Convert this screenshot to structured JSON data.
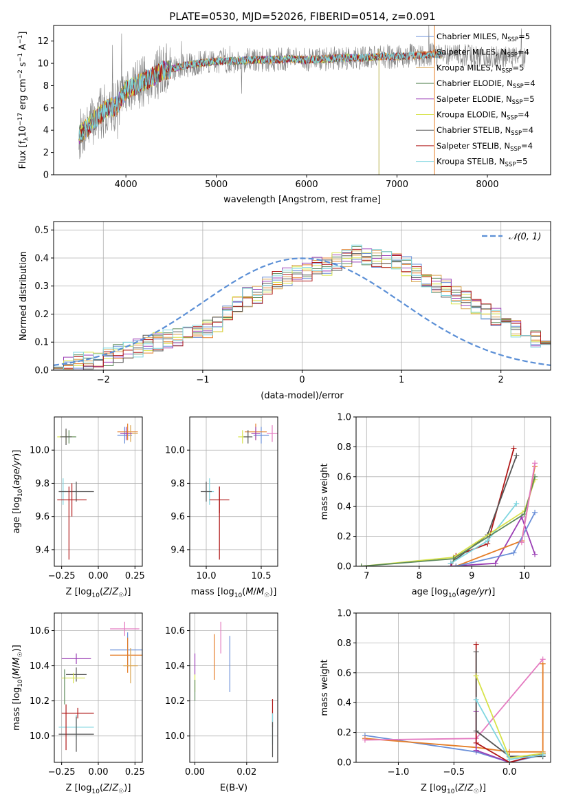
{
  "figure": {
    "title": "PLATE=0530, MJD=52026, FIBERID=0514, z=0.091"
  },
  "colors": {
    "Chabrier MILES": "#6a8fd8",
    "Salpeter MILES": "#e57d26",
    "Kroupa MILES": "#d9a552",
    "Chabrier ELODIE": "#5d8a5a",
    "Salpeter ELODIE": "#9b3fb5",
    "Kroupa ELODIE": "#d7e34a",
    "Chabrier STELIB": "#555555",
    "Salpeter STELIB": "#b01818",
    "Kroupa STELIB": "#7fd6e0",
    "pink": "#e47bc1",
    "observed": "#808080",
    "gaussian": "#5b8fd6"
  },
  "chart_data": [
    {
      "id": "spectrum",
      "type": "line",
      "title": "PLATE=0530, MJD=52026, FIBERID=0514, z=0.091",
      "xlabel": "wavelength [Angstrom, rest frame]",
      "ylabel": "Flux [f_λ10^-17 erg cm^-2 s^-1 A^-1]",
      "xlim": [
        3200,
        8700
      ],
      "ylim": [
        0,
        13.4
      ],
      "xticks": [
        4000,
        5000,
        6000,
        7000,
        8000
      ],
      "yticks": [
        0,
        2,
        4,
        6,
        8,
        10,
        12
      ],
      "legend_position": "top-right",
      "legend": [
        {
          "label": "Chabrier MILES, N",
          "sub": "SSP",
          "tail": "=5",
          "color": "#6a8fd8"
        },
        {
          "label": "Salpeter MILES, N",
          "sub": "SSP",
          "tail": "=4",
          "color": "#e57d26"
        },
        {
          "label": "Kroupa MILES, N",
          "sub": "SSP",
          "tail": "=5",
          "color": "#d9a552"
        },
        {
          "label": "Chabrier ELODIE, N",
          "sub": "SSP",
          "tail": "=4",
          "color": "#5d8a5a"
        },
        {
          "label": "Salpeter ELODIE, N",
          "sub": "SSP",
          "tail": "=5",
          "color": "#9b3fb5"
        },
        {
          "label": "Kroupa ELODIE, N",
          "sub": "SSP",
          "tail": "=4",
          "color": "#d7e34a"
        },
        {
          "label": "Chabrier STELIB, N",
          "sub": "SSP",
          "tail": "=4",
          "color": "#555555"
        },
        {
          "label": "Salpeter STELIB, N",
          "sub": "SSP",
          "tail": "=4",
          "color": "#b01818"
        },
        {
          "label": "Kroupa STELIB, N",
          "sub": "SSP",
          "tail": "=5",
          "color": "#7fd6e0"
        }
      ],
      "continuum": [
        [
          3480,
          3.5
        ],
        [
          3600,
          4.5
        ],
        [
          3700,
          5.3
        ],
        [
          3800,
          6.0
        ],
        [
          3900,
          6.2
        ],
        [
          4000,
          7.6
        ],
        [
          4100,
          8.0
        ],
        [
          4200,
          8.4
        ],
        [
          4300,
          8.8
        ],
        [
          4400,
          9.3
        ],
        [
          4500,
          9.5
        ],
        [
          4600,
          9.7
        ],
        [
          4800,
          10.0
        ],
        [
          5000,
          10.2
        ],
        [
          5200,
          10.2
        ],
        [
          5400,
          10.3
        ],
        [
          5600,
          10.3
        ],
        [
          5800,
          10.4
        ],
        [
          6000,
          10.3
        ],
        [
          6200,
          10.4
        ],
        [
          6400,
          10.5
        ],
        [
          6600,
          10.5
        ],
        [
          6800,
          10.6
        ],
        [
          7000,
          10.6
        ],
        [
          7200,
          10.7
        ],
        [
          7400,
          10.8
        ],
        [
          7600,
          10.8
        ],
        [
          7800,
          10.7
        ],
        [
          8000,
          10.6
        ],
        [
          8200,
          10.6
        ],
        [
          8400,
          10.5
        ]
      ],
      "model_range": [
        3480,
        7500
      ],
      "observed_range": [
        3480,
        8420
      ]
    },
    {
      "id": "residuals",
      "type": "histogram",
      "xlabel": "(data-model)/error",
      "ylabel": "Normed distribution",
      "xlim": [
        -2.5,
        2.5
      ],
      "ylim": [
        0,
        0.53
      ],
      "xticks": [
        -2,
        -1,
        0,
        1,
        2
      ],
      "yticks": [
        0.0,
        0.1,
        0.2,
        0.3,
        0.4,
        0.5
      ],
      "legend": {
        "label": "𝒩(0, 1)",
        "position": "top-right"
      },
      "bin_width": 0.1,
      "bin_start": -2.5,
      "base_values": [
        0.01,
        0.02,
        0.03,
        0.035,
        0.03,
        0.05,
        0.06,
        0.07,
        0.08,
        0.09,
        0.1,
        0.11,
        0.12,
        0.13,
        0.14,
        0.15,
        0.17,
        0.2,
        0.23,
        0.26,
        0.27,
        0.3,
        0.32,
        0.33,
        0.34,
        0.35,
        0.37,
        0.37,
        0.39,
        0.4,
        0.42,
        0.41,
        0.4,
        0.39,
        0.38,
        0.37,
        0.35,
        0.33,
        0.31,
        0.29,
        0.27,
        0.25,
        0.23,
        0.21,
        0.19,
        0.17,
        0.15,
        0.13,
        0.11,
        0.1
      ]
    },
    {
      "id": "age_vs_Z",
      "type": "scatter-errorbar",
      "xlabel": "Z [log10(Z/Z☉)]",
      "ylabel": "age [log10(age/yr)]",
      "xlim": [
        -0.3,
        0.3
      ],
      "ylim": [
        9.3,
        10.2
      ],
      "xticks": [
        -0.25,
        0.0,
        0.25
      ],
      "xticklabels": [
        "−0.25",
        "0.00",
        "0.25"
      ],
      "yticks": [
        9.4,
        9.6,
        9.8,
        10.0
      ],
      "points": [
        {
          "series": "Chabrier MILES",
          "x": 0.18,
          "y": 10.09,
          "xerr": 0.05,
          "yerr": 0.05
        },
        {
          "series": "Salpeter MILES",
          "x": 0.2,
          "y": 10.11,
          "xerr": 0.07,
          "yerr": 0.05
        },
        {
          "series": "Kroupa MILES",
          "x": 0.22,
          "y": 10.1,
          "xerr": 0.05,
          "yerr": 0.05
        },
        {
          "series": "Salpeter ELODIE",
          "x": 0.19,
          "y": 10.1,
          "xerr": 0.04,
          "yerr": 0.04
        },
        {
          "series": "Kroupa ELODIE",
          "x": -0.22,
          "y": 10.08,
          "xerr": 0.06,
          "yerr": 0.04
        },
        {
          "series": "Chabrier ELODIE",
          "x": -0.2,
          "y": 10.08,
          "xerr": 0.05,
          "yerr": 0.04
        },
        {
          "series": "Chabrier STELIB",
          "x": -0.22,
          "y": 10.08,
          "xerr": 0.04,
          "yerr": 0.05
        },
        {
          "series": "Kroupa STELIB",
          "x": -0.24,
          "y": 9.75,
          "xerr": 0.02,
          "yerr": 0.08
        },
        {
          "series": "Chabrier STELIB",
          "x": -0.15,
          "y": 9.75,
          "xerr": 0.12,
          "yerr": 0.06
        },
        {
          "series": "Salpeter STELIB",
          "x": -0.18,
          "y": 9.7,
          "xerr": 0.1,
          "yerr": 0.1
        },
        {
          "series": "Salpeter STELIB",
          "x": -0.2,
          "y": 9.56,
          "xerr": 0.0,
          "yerr": 0.22
        }
      ]
    },
    {
      "id": "age_vs_mass",
      "type": "scatter-errorbar",
      "xlabel": "mass [log10(M/M☉)]",
      "xlim": [
        9.85,
        10.65
      ],
      "ylim": [
        9.3,
        10.2
      ],
      "xticks": [
        10.0,
        10.5
      ],
      "yticks": [
        9.4,
        9.6,
        9.8,
        10.0
      ],
      "points": [
        {
          "series": "Chabrier MILES",
          "x": 10.5,
          "y": 10.09,
          "xerr": 0.07,
          "yerr": 0.05
        },
        {
          "series": "Salpeter MILES",
          "x": 10.45,
          "y": 10.11,
          "xerr": 0.1,
          "yerr": 0.05
        },
        {
          "series": "pink",
          "x": 10.6,
          "y": 10.1,
          "xerr": 0.05,
          "yerr": 0.05
        },
        {
          "series": "Salpeter ELODIE",
          "x": 10.45,
          "y": 10.1,
          "xerr": 0.04,
          "yerr": 0.04
        },
        {
          "series": "Kroupa ELODIE",
          "x": 10.33,
          "y": 10.08,
          "xerr": 0.04,
          "yerr": 0.04
        },
        {
          "series": "Chabrier STELIB",
          "x": 10.38,
          "y": 10.08,
          "xerr": 0.04,
          "yerr": 0.04
        },
        {
          "series": "Kroupa STELIB",
          "x": 10.03,
          "y": 9.75,
          "xerr": 0.04,
          "yerr": 0.08
        },
        {
          "series": "Chabrier STELIB",
          "x": 10.0,
          "y": 9.75,
          "xerr": 0.05,
          "yerr": 0.06
        },
        {
          "series": "Salpeter STELIB",
          "x": 10.12,
          "y": 9.7,
          "xerr": 0.09,
          "yerr": 0.08
        },
        {
          "series": "Salpeter STELIB",
          "x": 10.12,
          "y": 9.56,
          "xerr": 0.0,
          "yerr": 0.22
        }
      ]
    },
    {
      "id": "weight_vs_age",
      "type": "line",
      "xlabel": "age  [log10(age/yr)]",
      "ylabel": "mass weight",
      "xlim": [
        6.8,
        10.5
      ],
      "ylim": [
        0,
        1.0
      ],
      "xticks": [
        7,
        8,
        9,
        10
      ],
      "yticks": [
        0.0,
        0.2,
        0.4,
        0.6,
        0.8,
        1.0
      ],
      "series": [
        {
          "name": "Salpeter STELIB",
          "x": [
            8.6,
            8.7,
            9.3,
            9.8
          ],
          "y": [
            0.0,
            0.07,
            0.15,
            0.79
          ]
        },
        {
          "name": "Chabrier STELIB",
          "x": [
            8.6,
            9.3,
            9.85
          ],
          "y": [
            0.02,
            0.21,
            0.74
          ]
        },
        {
          "name": "Kroupa STELIB",
          "x": [
            8.6,
            9.3,
            9.85
          ],
          "y": [
            0.02,
            0.17,
            0.42
          ]
        },
        {
          "name": "Salpeter ELODIE",
          "x": [
            8.6,
            9.45,
            9.95,
            10.2
          ],
          "y": [
            0.0,
            0.02,
            0.33,
            0.08
          ]
        },
        {
          "name": "Kroupa ELODIE",
          "x": [
            6.9,
            8.65,
            10.0,
            10.2
          ],
          "y": [
            0.0,
            0.06,
            0.37,
            0.58
          ]
        },
        {
          "name": "Chabrier ELODIE",
          "x": [
            6.9,
            8.65,
            10.0,
            10.2
          ],
          "y": [
            0.0,
            0.05,
            0.35,
            0.6
          ]
        },
        {
          "name": "Salpeter MILES",
          "x": [
            8.7,
            9.95,
            10.2
          ],
          "y": [
            0.0,
            0.17,
            0.67
          ]
        },
        {
          "name": "Chabrier MILES",
          "x": [
            8.7,
            9.8,
            10.2
          ],
          "y": [
            0.0,
            0.09,
            0.36
          ]
        },
        {
          "name": "pink",
          "x": [
            9.95,
            10.2
          ],
          "y": [
            0.16,
            0.69
          ]
        }
      ]
    },
    {
      "id": "mass_vs_Z",
      "type": "scatter-errorbar",
      "xlabel": "Z [log10(Z/Z☉)]",
      "ylabel": "mass [log10(M/M☉)]",
      "xlim": [
        -0.3,
        0.3
      ],
      "ylim": [
        9.85,
        10.7
      ],
      "xticks": [
        -0.25,
        0.0,
        0.25
      ],
      "xticklabels": [
        "−0.25",
        "0.00",
        "0.25"
      ],
      "yticks": [
        10.0,
        10.2,
        10.4,
        10.6
      ],
      "points": [
        {
          "series": "pink",
          "x": 0.18,
          "y": 10.61,
          "xerr": 0.1,
          "yerr": 0.04
        },
        {
          "series": "Chabrier MILES",
          "x": 0.2,
          "y": 10.49,
          "xerr": 0.12,
          "yerr": 0.1
        },
        {
          "series": "Salpeter MILES",
          "x": 0.2,
          "y": 10.46,
          "xerr": 0.12,
          "yerr": 0.1
        },
        {
          "series": "Kroupa MILES",
          "x": 0.22,
          "y": 10.4,
          "xerr": 0.05,
          "yerr": 0.1
        },
        {
          "series": "Salpeter ELODIE",
          "x": -0.15,
          "y": 10.44,
          "xerr": 0.1,
          "yerr": 0.03
        },
        {
          "series": "Chabrier STELIB",
          "x": -0.15,
          "y": 10.35,
          "xerr": 0.07,
          "yerr": 0.04
        },
        {
          "series": "Kroupa ELODIE",
          "x": -0.17,
          "y": 10.33,
          "xerr": 0.08,
          "yerr": 0.03
        },
        {
          "series": "Chabrier ELODIE",
          "x": -0.23,
          "y": 10.28,
          "xerr": 0.0,
          "yerr": 0.1
        },
        {
          "series": "Salpeter STELIB",
          "x": -0.14,
          "y": 10.13,
          "xerr": 0.11,
          "yerr": 0.03
        },
        {
          "series": "Kroupa STELIB",
          "x": -0.15,
          "y": 10.05,
          "xerr": 0.12,
          "yerr": 0.07
        },
        {
          "series": "Chabrier STELIB",
          "x": -0.15,
          "y": 10.01,
          "xerr": 0.12,
          "yerr": 0.1
        },
        {
          "series": "Salpeter STELIB",
          "x": -0.22,
          "y": 10.05,
          "xerr": 0.0,
          "yerr": 0.13
        }
      ]
    },
    {
      "id": "mass_vs_EBV",
      "type": "errorbar",
      "xlabel": "E(B-V)",
      "xlim": [
        -0.002,
        0.032
      ],
      "ylim": [
        9.85,
        10.7
      ],
      "xticks": [
        0.0,
        0.02
      ],
      "xticklabels": [
        "0.00",
        "0.02"
      ],
      "yticks": [
        10.0,
        10.2,
        10.4,
        10.6
      ],
      "points": [
        {
          "series": "Salpeter ELODIE",
          "x": 0.0,
          "y": 10.41,
          "yerr": 0.06
        },
        {
          "series": "Kroupa ELODIE",
          "x": 0.0,
          "y": 10.3,
          "yerr": 0.05
        },
        {
          "series": "Chabrier ELODIE",
          "x": 0.0,
          "y": 10.26,
          "yerr": 0.06
        },
        {
          "series": "Salpeter MILES",
          "x": 0.0075,
          "y": 10.45,
          "yerr": 0.13
        },
        {
          "series": "pink",
          "x": 0.01,
          "y": 10.56,
          "yerr": 0.09
        },
        {
          "series": "Chabrier MILES",
          "x": 0.0135,
          "y": 10.41,
          "yerr": 0.16
        },
        {
          "series": "Salpeter STELIB",
          "x": 0.03,
          "y": 10.13,
          "yerr": 0.08
        },
        {
          "series": "Kroupa STELIB",
          "x": 0.03,
          "y": 10.04,
          "yerr": 0.09
        },
        {
          "series": "Chabrier STELIB",
          "x": 0.03,
          "y": 9.98,
          "yerr": 0.1
        }
      ]
    },
    {
      "id": "weight_vs_Z",
      "type": "line",
      "xlabel": "Z [log10(Z/Z☉)]",
      "ylabel": "mass weight",
      "xlim": [
        -1.38,
        0.37
      ],
      "ylim": [
        0,
        1.0
      ],
      "xticks": [
        -1.0,
        -0.5,
        0.0
      ],
      "xticklabels": [
        "−1.0",
        "−0.5",
        "0.0"
      ],
      "yticks": [
        0.0,
        0.2,
        0.4,
        0.6,
        0.8,
        1.0
      ],
      "series": [
        {
          "name": "Chabrier MILES",
          "x": [
            -1.3,
            -0.3,
            0.0,
            0.3
          ],
          "y": [
            0.18,
            0.07,
            0.0,
            0.05
          ]
        },
        {
          "name": "Salpeter MILES",
          "x": [
            -1.3,
            -0.3,
            0.0,
            0.3,
            0.3
          ],
          "y": [
            0.16,
            0.1,
            0.07,
            0.07,
            0.66
          ]
        },
        {
          "name": "pink",
          "x": [
            -1.3,
            -0.3,
            0.3
          ],
          "y": [
            0.15,
            0.16,
            0.69
          ]
        },
        {
          "name": "Salpeter ELODIE",
          "x": [
            -0.3,
            -0.3,
            0.0,
            0.3
          ],
          "y": [
            0.34,
            0.08,
            0.0,
            0.06
          ]
        },
        {
          "name": "Salpeter STELIB",
          "x": [
            -0.3,
            -0.3,
            0.0,
            0.3
          ],
          "y": [
            0.79,
            0.13,
            0.0,
            0.06
          ]
        },
        {
          "name": "Chabrier STELIB",
          "x": [
            -0.3,
            -0.3,
            0.0,
            0.3
          ],
          "y": [
            0.74,
            0.21,
            0.04,
            0.04
          ]
        },
        {
          "name": "Kroupa ELODIE",
          "x": [
            -0.3,
            0.0,
            0.3
          ],
          "y": [
            0.58,
            0.03,
            0.06
          ]
        },
        {
          "name": "Kroupa STELIB",
          "x": [
            -0.3,
            0.0,
            0.3
          ],
          "y": [
            0.42,
            0.02,
            0.05
          ]
        }
      ]
    }
  ]
}
